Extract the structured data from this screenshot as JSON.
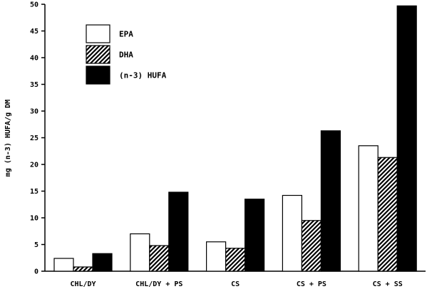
{
  "chart_data": {
    "type": "bar",
    "title": "",
    "xlabel": "",
    "ylabel": "mg (n-3) HUFA/g DM",
    "ylim": [
      0,
      50
    ],
    "yticks": [
      0,
      5,
      10,
      15,
      20,
      25,
      30,
      35,
      40,
      45,
      50
    ],
    "ytick_labels": [
      "0",
      "5",
      "10",
      "15",
      "20",
      "25",
      "30",
      "35",
      "40",
      "45",
      "50"
    ],
    "categories": [
      "CHL/DY",
      "CHL/DY + PS",
      "CS",
      "CS + PS",
      "CS + SS"
    ],
    "series": [
      {
        "name": "EPA",
        "values": [
          2.4,
          7.0,
          5.5,
          14.2,
          23.5
        ],
        "fill": "white"
      },
      {
        "name": "DHA",
        "values": [
          0.8,
          4.8,
          4.3,
          9.5,
          21.3
        ],
        "fill": "hatch"
      },
      {
        "name": "(n-3) HUFA",
        "values": [
          3.3,
          14.8,
          13.5,
          26.3,
          49.7
        ],
        "fill": "black"
      }
    ],
    "legend_position": "top-left",
    "grid": false
  },
  "colors": {
    "ink": "#000000",
    "background": "#ffffff"
  }
}
